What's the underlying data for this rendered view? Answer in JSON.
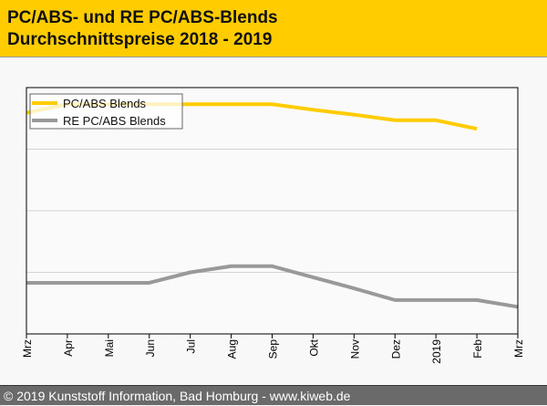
{
  "header": {
    "title_line1": "PC/ABS- und RE PC/ABS-Blends",
    "title_line2": "Durchschnittspreise 2018 - 2019"
  },
  "footer": {
    "text": "© 2019 Kunststoff Information, Bad Homburg - www.kiweb.de"
  },
  "chart_data": {
    "type": "line",
    "categories": [
      "Mrz",
      "Apr",
      "Mai",
      "Jun",
      "Jul",
      "Aug",
      "Sep",
      "Okt",
      "Nov",
      "Dez",
      "2019",
      "Feb",
      "Mrz"
    ],
    "ylim": [
      0,
      4
    ],
    "grid": true,
    "legend": "top-left",
    "xlabel": "",
    "ylabel": "",
    "series": [
      {
        "name": "PC/ABS Blends",
        "color": "#ffcc00",
        "values": [
          3.59,
          3.73,
          3.73,
          3.73,
          3.73,
          3.73,
          3.73,
          3.64,
          3.56,
          3.47,
          3.47,
          3.33,
          null
        ]
      },
      {
        "name": "RE PC/ABS Blends",
        "color": "#999999",
        "values": [
          0.83,
          0.83,
          0.83,
          0.83,
          1.0,
          1.1,
          1.1,
          0.92,
          0.74,
          0.55,
          0.55,
          0.55,
          0.44
        ]
      }
    ]
  }
}
